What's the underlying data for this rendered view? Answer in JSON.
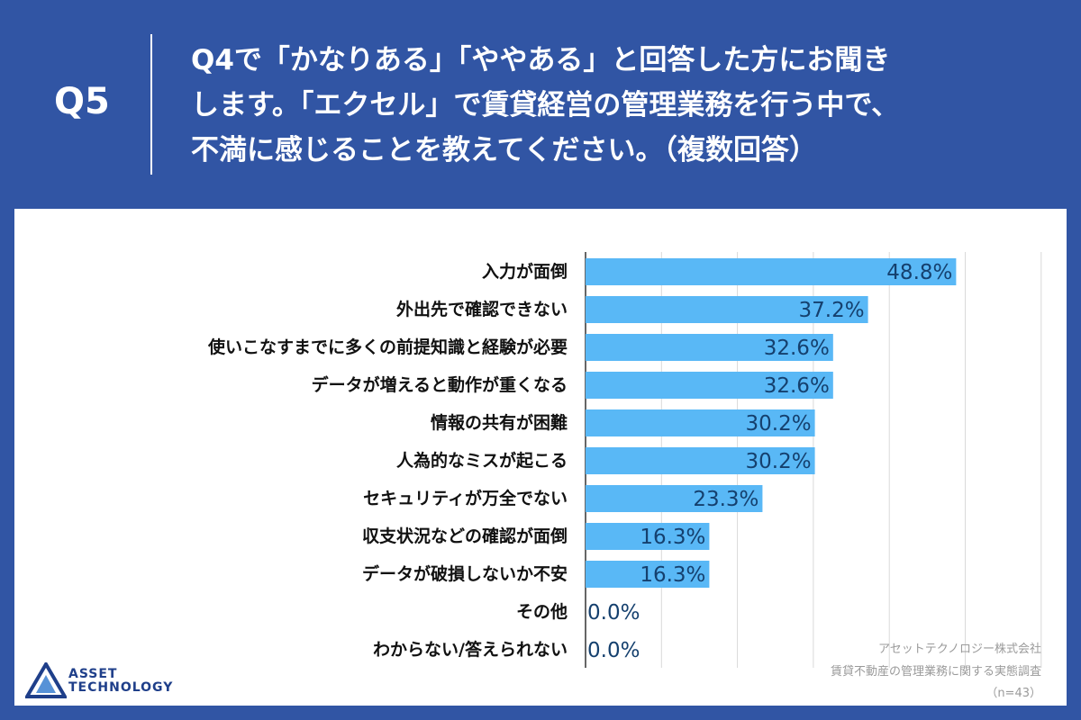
{
  "header": {
    "question_number": "Q5",
    "question_lines": [
      "Q4で「かなりある」「ややある」と回答した方にお聞き",
      "します。「エクセル」で賃貸経営の管理業務を行う中で、",
      "不満に感じることを教えてください。（複数回答）"
    ]
  },
  "colors": {
    "background": "#3155a4",
    "bar": "#59b8f6",
    "value_text": "#15406e",
    "grid": "#d9d9d9"
  },
  "chart_data": {
    "type": "bar",
    "orientation": "horizontal",
    "categories": [
      "入力が面倒",
      "外出先で確認できない",
      "使いこなすまでに多くの前提知識と経験が必要",
      "データが増えると動作が重くなる",
      "情報の共有が困難",
      "人為的なミスが起こる",
      "セキュリティが万全でない",
      "収支状況などの確認が面倒",
      "データが破損しないか不安",
      "その他",
      "わからない/答えられない"
    ],
    "values": [
      48.8,
      37.2,
      32.6,
      32.6,
      30.2,
      30.2,
      23.3,
      16.3,
      16.3,
      0.0,
      0.0
    ],
    "value_labels": [
      "48.8%",
      "37.2%",
      "32.6%",
      "32.6%",
      "30.2%",
      "30.2%",
      "23.3%",
      "16.3%",
      "16.3%",
      "0.0%",
      "0.0%"
    ],
    "xlim": [
      0,
      60
    ],
    "grid": true
  },
  "logo": {
    "line1": "ASSET",
    "line2": "TECHNOLOGY"
  },
  "source": {
    "company": "アセットテクノロジー株式会社",
    "survey": "賃貸不動産の管理業務に関する実態調査",
    "sample": "（n=43）"
  }
}
